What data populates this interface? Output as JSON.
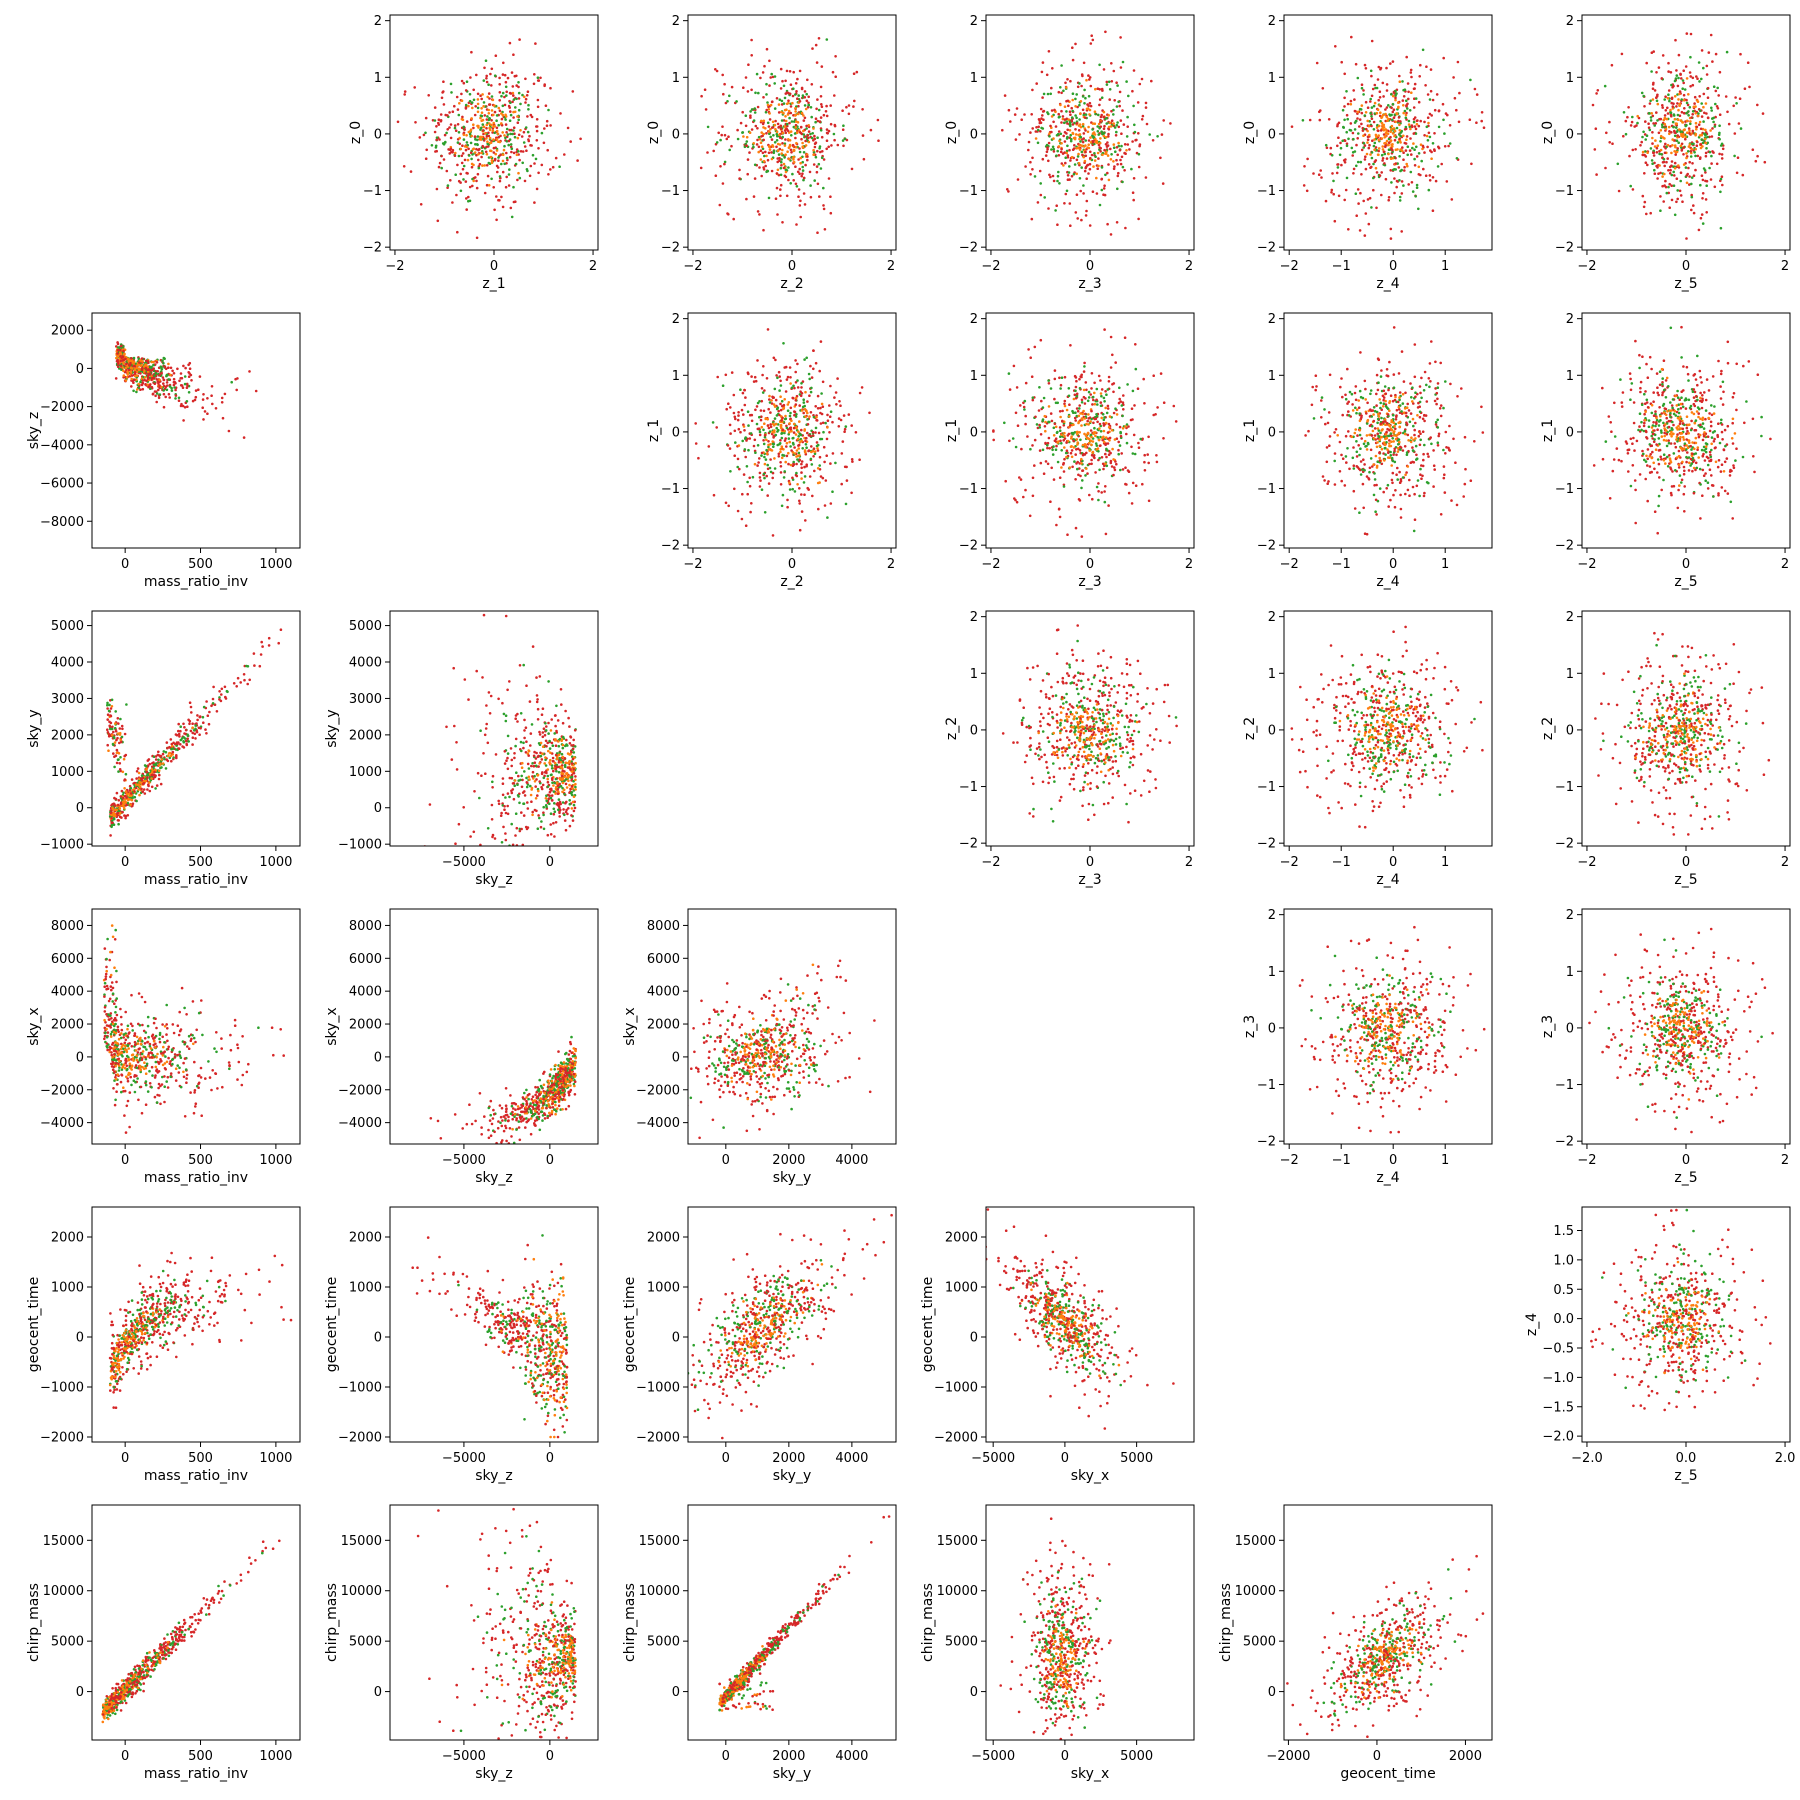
{
  "chart_data": {
    "type": "scatter",
    "layout": "pair-plot upper/lower grid, 6 rows x 6 columns",
    "grid": false,
    "legend": "none",
    "series_colors": {
      "red": "#d62728",
      "green": "#2ca02c",
      "orange": "#ff7f0e"
    },
    "variables": {
      "z_0": [
        -2,
        2
      ],
      "z_1": [
        -2,
        2
      ],
      "z_2": [
        -2,
        2
      ],
      "z_3": [
        -2,
        2
      ],
      "z_4": [
        -2,
        1.9
      ],
      "z_5": [
        -2,
        2
      ],
      "mass_ratio_inv": [
        -200,
        1150
      ],
      "sky_z": [
        -9000,
        2700
      ],
      "sky_y": [
        -1000,
        5300
      ],
      "sky_x": [
        -5000,
        8500
      ],
      "geocent_time": [
        -2000,
        2400
      ],
      "chirp_mass": [
        -3500,
        18000
      ]
    },
    "panels": [
      {
        "row": 0,
        "col": 1,
        "xlabel": "z_1",
        "ylabel": "z_0",
        "xticks": [
          -2,
          0,
          2
        ],
        "yticks": [
          -2,
          -1,
          0,
          1,
          2
        ],
        "xlim": [
          -2.1,
          2.1
        ],
        "ylim": [
          -2.05,
          2.1
        ],
        "shape": "blob"
      },
      {
        "row": 0,
        "col": 2,
        "xlabel": "z_2",
        "ylabel": "z_0",
        "xticks": [
          -2,
          0,
          2
        ],
        "yticks": [
          -2,
          -1,
          0,
          1,
          2
        ],
        "xlim": [
          -2.1,
          2.1
        ],
        "ylim": [
          -2.05,
          2.1
        ],
        "shape": "blob"
      },
      {
        "row": 0,
        "col": 3,
        "xlabel": "z_3",
        "ylabel": "z_0",
        "xticks": [
          -2,
          0,
          2
        ],
        "yticks": [
          -2,
          -1,
          0,
          1,
          2
        ],
        "xlim": [
          -2.1,
          2.1
        ],
        "ylim": [
          -2.05,
          2.1
        ],
        "shape": "blob"
      },
      {
        "row": 0,
        "col": 4,
        "xlabel": "z_4",
        "ylabel": "z_0",
        "xticks": [
          -2,
          -1,
          0,
          1
        ],
        "yticks": [
          -2,
          -1,
          0,
          1,
          2
        ],
        "xlim": [
          -2.1,
          1.9
        ],
        "ylim": [
          -2.05,
          2.1
        ],
        "shape": "blob"
      },
      {
        "row": 0,
        "col": 5,
        "xlabel": "z_5",
        "ylabel": "z_0",
        "xticks": [
          -2,
          0,
          2
        ],
        "yticks": [
          -2,
          -1,
          0,
          1,
          2
        ],
        "xlim": [
          -2.1,
          2.1
        ],
        "ylim": [
          -2.05,
          2.1
        ],
        "shape": "blob"
      },
      {
        "row": 1,
        "col": 0,
        "xlabel": "mass_ratio_inv",
        "ylabel": "sky_z",
        "xticks": [
          0,
          500,
          1000
        ],
        "yticks": [
          -8000,
          -6000,
          -4000,
          -2000,
          0,
          2000
        ],
        "xlim": [
          -220,
          1160
        ],
        "ylim": [
          -9400,
          2900
        ],
        "shape": "fan"
      },
      {
        "row": 1,
        "col": 2,
        "xlabel": "z_2",
        "ylabel": "z_1",
        "xticks": [
          -2,
          0,
          2
        ],
        "yticks": [
          -2,
          -1,
          0,
          1,
          2
        ],
        "xlim": [
          -2.1,
          2.1
        ],
        "ylim": [
          -2.05,
          2.1
        ],
        "shape": "blob"
      },
      {
        "row": 1,
        "col": 3,
        "xlabel": "z_3",
        "ylabel": "z_1",
        "xticks": [
          -2,
          0,
          2
        ],
        "yticks": [
          -2,
          -1,
          0,
          1,
          2
        ],
        "xlim": [
          -2.1,
          2.1
        ],
        "ylim": [
          -2.05,
          2.1
        ],
        "shape": "blob"
      },
      {
        "row": 1,
        "col": 4,
        "xlabel": "z_4",
        "ylabel": "z_1",
        "xticks": [
          -2,
          -1,
          0,
          1
        ],
        "yticks": [
          -2,
          -1,
          0,
          1,
          2
        ],
        "xlim": [
          -2.1,
          1.9
        ],
        "ylim": [
          -2.05,
          2.1
        ],
        "shape": "blob"
      },
      {
        "row": 1,
        "col": 5,
        "xlabel": "z_5",
        "ylabel": "z_1",
        "xticks": [
          -2,
          0,
          2
        ],
        "yticks": [
          -2,
          -1,
          0,
          1,
          2
        ],
        "xlim": [
          -2.1,
          2.1
        ],
        "ylim": [
          -2.05,
          2.1
        ],
        "shape": "blob"
      },
      {
        "row": 2,
        "col": 0,
        "xlabel": "mass_ratio_inv",
        "ylabel": "sky_y",
        "xticks": [
          0,
          500,
          1000
        ],
        "yticks": [
          -1000,
          0,
          1000,
          2000,
          3000,
          4000,
          5000
        ],
        "xlim": [
          -220,
          1160
        ],
        "ylim": [
          -1050,
          5400
        ],
        "shape": "linear-hook"
      },
      {
        "row": 2,
        "col": 1,
        "xlabel": "sky_z",
        "ylabel": "sky_y",
        "xticks": [
          -5000,
          0
        ],
        "yticks": [
          -1000,
          0,
          1000,
          2000,
          3000,
          4000,
          5000
        ],
        "xlim": [
          -9300,
          2800
        ],
        "ylim": [
          -1050,
          5400
        ],
        "shape": "v-fan"
      },
      {
        "row": 2,
        "col": 3,
        "xlabel": "z_3",
        "ylabel": "z_2",
        "xticks": [
          -2,
          0,
          2
        ],
        "yticks": [
          -2,
          -1,
          0,
          1,
          2
        ],
        "xlim": [
          -2.1,
          2.1
        ],
        "ylim": [
          -2.05,
          2.1
        ],
        "shape": "blob"
      },
      {
        "row": 2,
        "col": 4,
        "xlabel": "z_4",
        "ylabel": "z_2",
        "xticks": [
          -2,
          -1,
          0,
          1
        ],
        "yticks": [
          -2,
          -1,
          0,
          1,
          2
        ],
        "xlim": [
          -2.1,
          1.9
        ],
        "ylim": [
          -2.05,
          2.1
        ],
        "shape": "blob"
      },
      {
        "row": 2,
        "col": 5,
        "xlabel": "z_5",
        "ylabel": "z_2",
        "xticks": [
          -2,
          0,
          2
        ],
        "yticks": [
          -2,
          -1,
          0,
          1,
          2
        ],
        "xlim": [
          -2.1,
          2.1
        ],
        "ylim": [
          -2.05,
          2.1
        ],
        "shape": "blob"
      },
      {
        "row": 3,
        "col": 0,
        "xlabel": "mass_ratio_inv",
        "ylabel": "sky_x",
        "xticks": [
          0,
          500,
          1000
        ],
        "yticks": [
          -4000,
          -2000,
          0,
          2000,
          4000,
          6000,
          8000
        ],
        "xlim": [
          -220,
          1160
        ],
        "ylim": [
          -5300,
          9000
        ],
        "shape": "l-shape"
      },
      {
        "row": 3,
        "col": 1,
        "xlabel": "sky_z",
        "ylabel": "sky_x",
        "xticks": [
          -5000,
          0
        ],
        "yticks": [
          -4000,
          -2000,
          0,
          2000,
          4000,
          6000,
          8000
        ],
        "xlim": [
          -9300,
          2800
        ],
        "ylim": [
          -5300,
          9000
        ],
        "shape": "curve-up"
      },
      {
        "row": 3,
        "col": 2,
        "xlabel": "sky_y",
        "ylabel": "sky_x",
        "xticks": [
          0,
          2000,
          4000
        ],
        "yticks": [
          -4000,
          -2000,
          0,
          2000,
          4000,
          6000,
          8000
        ],
        "xlim": [
          -1200,
          5400
        ],
        "ylim": [
          -5300,
          9000
        ],
        "shape": "wedge"
      },
      {
        "row": 3,
        "col": 4,
        "xlabel": "z_4",
        "ylabel": "z_3",
        "xticks": [
          -2,
          -1,
          0,
          1
        ],
        "yticks": [
          -2,
          -1,
          0,
          1,
          2
        ],
        "xlim": [
          -2.1,
          1.9
        ],
        "ylim": [
          -2.05,
          2.1
        ],
        "shape": "blob"
      },
      {
        "row": 3,
        "col": 5,
        "xlabel": "z_5",
        "ylabel": "z_3",
        "xticks": [
          -2,
          0,
          2
        ],
        "yticks": [
          -2,
          -1,
          0,
          1,
          2
        ],
        "xlim": [
          -2.1,
          2.1
        ],
        "ylim": [
          -2.05,
          2.1
        ],
        "shape": "blob"
      },
      {
        "row": 4,
        "col": 0,
        "xlabel": "mass_ratio_inv",
        "ylabel": "geocent_time",
        "xticks": [
          0,
          500,
          1000
        ],
        "yticks": [
          -2000,
          -1000,
          0,
          1000,
          2000
        ],
        "xlim": [
          -220,
          1160
        ],
        "ylim": [
          -2100,
          2600
        ],
        "shape": "saturating"
      },
      {
        "row": 4,
        "col": 1,
        "xlabel": "sky_z",
        "ylabel": "geocent_time",
        "xticks": [
          -5000,
          0
        ],
        "yticks": [
          -2000,
          -1000,
          0,
          1000,
          2000
        ],
        "xlim": [
          -9300,
          2800
        ],
        "ylim": [
          -2100,
          2600
        ],
        "shape": "decreasing-curve"
      },
      {
        "row": 4,
        "col": 2,
        "xlabel": "sky_y",
        "ylabel": "geocent_time",
        "xticks": [
          0,
          2000,
          4000
        ],
        "yticks": [
          -2000,
          -1000,
          0,
          1000,
          2000
        ],
        "xlim": [
          -1200,
          5400
        ],
        "ylim": [
          -2100,
          2600
        ],
        "shape": "increasing"
      },
      {
        "row": 4,
        "col": 3,
        "xlabel": "sky_x",
        "ylabel": "geocent_time",
        "xticks": [
          -5000,
          0,
          5000
        ],
        "yticks": [
          -2000,
          -1000,
          0,
          1000,
          2000
        ],
        "xlim": [
          -5500,
          9000
        ],
        "ylim": [
          -2100,
          2600
        ],
        "shape": "decreasing"
      },
      {
        "row": 4,
        "col": 5,
        "xlabel": "z_5",
        "ylabel": "z_4",
        "xticks": [
          -2,
          0,
          2
        ],
        "yticks": [
          -2.0,
          -1.5,
          -1.0,
          -0.5,
          0.0,
          0.5,
          1.0,
          1.5
        ],
        "tickfmt": 1,
        "xlim": [
          -2.1,
          2.1
        ],
        "ylim": [
          -2.1,
          1.9
        ],
        "shape": "blob"
      },
      {
        "row": 5,
        "col": 0,
        "xlabel": "mass_ratio_inv",
        "ylabel": "chirp_mass",
        "xticks": [
          0,
          500,
          1000
        ],
        "yticks": [
          0,
          5000,
          10000,
          15000
        ],
        "xlim": [
          -220,
          1160
        ],
        "ylim": [
          -4800,
          18500
        ],
        "shape": "tight-linear"
      },
      {
        "row": 5,
        "col": 1,
        "xlabel": "sky_z",
        "ylabel": "chirp_mass",
        "xticks": [
          -5000,
          0
        ],
        "yticks": [
          0,
          5000,
          10000,
          15000
        ],
        "xlim": [
          -9300,
          2800
        ],
        "ylim": [
          -4800,
          18500
        ],
        "shape": "v-fan"
      },
      {
        "row": 5,
        "col": 2,
        "xlabel": "sky_y",
        "ylabel": "chirp_mass",
        "xticks": [
          0,
          2000,
          4000
        ],
        "yticks": [
          0,
          5000,
          10000,
          15000
        ],
        "xlim": [
          -1200,
          5400
        ],
        "ylim": [
          -4800,
          18500
        ],
        "shape": "tight-linear"
      },
      {
        "row": 5,
        "col": 3,
        "xlabel": "sky_x",
        "ylabel": "chirp_mass",
        "xticks": [
          -5000,
          0,
          5000
        ],
        "yticks": [
          0,
          5000,
          10000,
          15000
        ],
        "xlim": [
          -5500,
          9000
        ],
        "ylim": [
          -4800,
          18500
        ],
        "shape": "column"
      },
      {
        "row": 5,
        "col": 4,
        "xlabel": "geocent_time",
        "ylabel": "chirp_mass",
        "xticks": [
          -2000,
          0,
          2000
        ],
        "yticks": [
          0,
          5000,
          10000,
          15000
        ],
        "xlim": [
          -2100,
          2600
        ],
        "ylim": [
          -4800,
          18500
        ],
        "shape": "increasing"
      }
    ]
  }
}
